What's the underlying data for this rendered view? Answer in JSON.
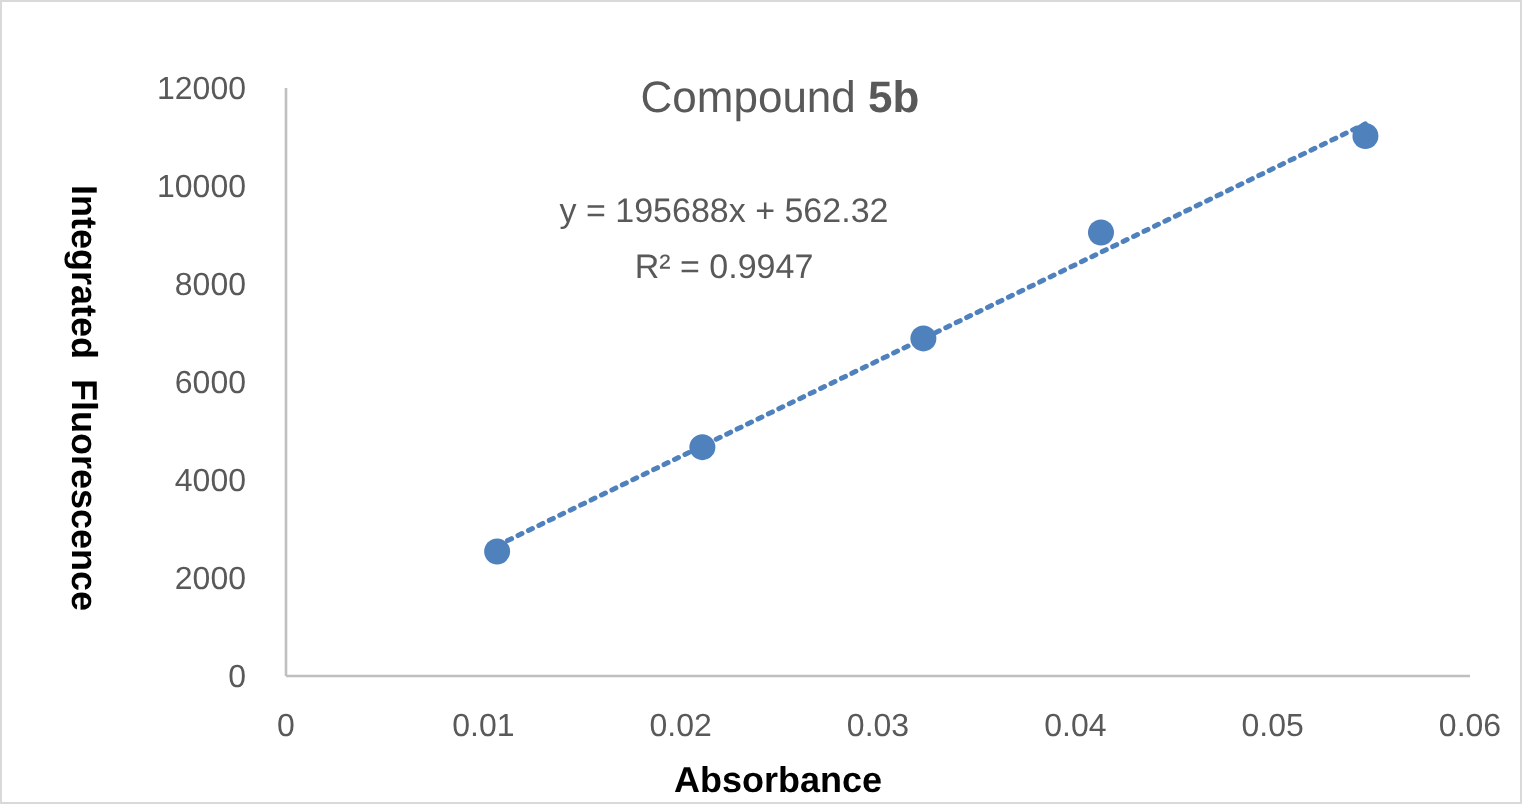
{
  "chart_data": {
    "type": "scatter",
    "title": "Compound 5b",
    "xlabel": "Absorbance",
    "ylabel": "Integrated  Fluorescence",
    "x": [
      0.0107,
      0.0211,
      0.0323,
      0.0413,
      0.0547
    ],
    "series": [
      {
        "color": "#4f81bd",
        "values": [
          2540,
          4670,
          6890,
          9050,
          11020
        ],
        "marker": "circle"
      },
      {
        "type": "line",
        "color": "#4f81bd",
        "x": [
          0.0107,
          0.0547
        ],
        "values": [
          2660,
          11270
        ],
        "line_style": "dotted"
      }
    ],
    "annotations": [
      "y = 195688x + 562.32",
      "R² = 0.9947"
    ],
    "xlim": [
      0,
      0.06
    ],
    "xticks": [
      0,
      0.01,
      0.02,
      0.03,
      0.04,
      0.05,
      0.06
    ],
    "ylim": [
      0,
      12000
    ],
    "yticks": [
      0,
      2000,
      4000,
      6000,
      8000,
      10000,
      12000
    ],
    "grid": false
  }
}
